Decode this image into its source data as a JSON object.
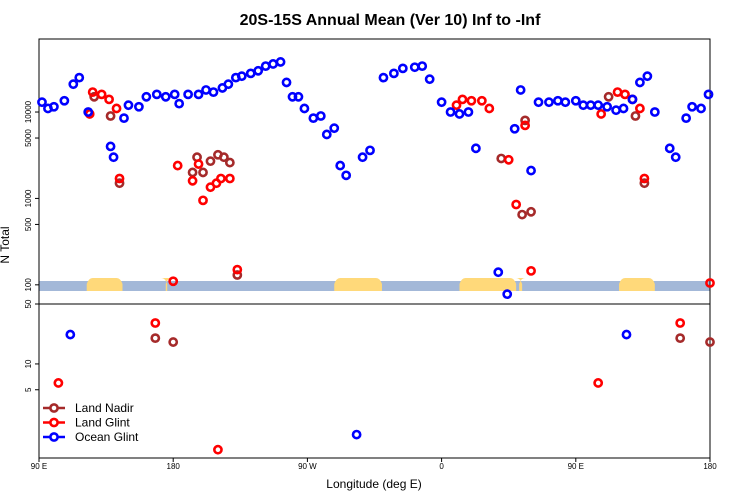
{
  "chart_data": {
    "type": "scatter",
    "title": "20S-15S Annual Mean (Ver 10)   Inf to -Inf",
    "xlabel": "Longitude (deg E)",
    "ylabel": "N Total",
    "x_ticks": [
      {
        "value": 90,
        "label": "90 E"
      },
      {
        "value": 180,
        "label": "180"
      },
      {
        "value": 270,
        "label": "90 W"
      },
      {
        "value": 360,
        "label": "0"
      },
      {
        "value": 450,
        "label": "90 E"
      },
      {
        "value": 540,
        "label": "180"
      }
    ],
    "xlim": [
      90,
      540
    ],
    "upper_panel": {
      "yscale": "log",
      "ylim": [
        60,
        70000
      ],
      "y_ticks": [
        {
          "value": 100,
          "label": "100"
        },
        {
          "value": 500,
          "label": "500"
        },
        {
          "value": 1000,
          "label": "1000"
        },
        {
          "value": 5000,
          "label": "5000"
        },
        {
          "value": 10000,
          "label": "10000"
        }
      ]
    },
    "lower_panel": {
      "yscale": "log",
      "ylim": [
        0.8,
        50
      ],
      "y_ticks": [
        {
          "value": 5,
          "label": "5"
        },
        {
          "value": 10,
          "label": "10"
        },
        {
          "value": 50,
          "label": "50"
        }
      ]
    },
    "land_mask": {
      "description_color_ocean": "#a3b8d8",
      "color_land": "#ffd97a",
      "land_ranges": [
        [
          122,
          146
        ],
        [
          175,
          176
        ],
        [
          288,
          320
        ],
        [
          372,
          410
        ],
        [
          412,
          414
        ],
        [
          479,
          503
        ]
      ]
    },
    "legend": {
      "position": "bottom-left"
    },
    "series": [
      {
        "name": "Land Nadir",
        "color": "#a52a2a",
        "upper": [
          [
            127,
            15000
          ],
          [
            138,
            9000
          ],
          [
            144,
            1500
          ],
          [
            193,
            2000
          ],
          [
            196,
            3000
          ],
          [
            200,
            2000
          ],
          [
            205,
            2700
          ],
          [
            210,
            3200
          ],
          [
            214,
            3000
          ],
          [
            218,
            2600
          ],
          [
            223,
            130
          ],
          [
            400,
            2900
          ],
          [
            414,
            650
          ],
          [
            416,
            8000
          ],
          [
            420,
            700
          ],
          [
            472,
            15000
          ],
          [
            490,
            9000
          ],
          [
            496,
            1500
          ]
        ],
        "lower": [
          [
            168,
            20
          ],
          [
            180,
            18
          ],
          [
            520,
            20
          ],
          [
            540,
            18
          ]
        ]
      },
      {
        "name": "Land Glint",
        "color": "#ff0000",
        "upper": [
          [
            124,
            9500
          ],
          [
            126,
            17000
          ],
          [
            132,
            16000
          ],
          [
            137,
            14000
          ],
          [
            142,
            11000
          ],
          [
            144,
            1700
          ],
          [
            180,
            110
          ],
          [
            183,
            2400
          ],
          [
            193,
            1600
          ],
          [
            197,
            2500
          ],
          [
            200,
            950
          ],
          [
            205,
            1350
          ],
          [
            209,
            1500
          ],
          [
            212,
            1700
          ],
          [
            218,
            1700
          ],
          [
            223,
            150
          ],
          [
            370,
            12000
          ],
          [
            374,
            14000
          ],
          [
            380,
            13500
          ],
          [
            387,
            13500
          ],
          [
            392,
            11000
          ],
          [
            405,
            2800
          ],
          [
            410,
            850
          ],
          [
            416,
            7000
          ],
          [
            420,
            145
          ],
          [
            467,
            9500
          ],
          [
            478,
            17000
          ],
          [
            483,
            16000
          ],
          [
            488,
            14000
          ],
          [
            493,
            11000
          ],
          [
            496,
            1700
          ],
          [
            540,
            105
          ]
        ],
        "lower": [
          [
            103,
            6
          ],
          [
            168,
            30
          ],
          [
            210,
            1
          ],
          [
            465,
            6
          ],
          [
            520,
            30
          ]
        ]
      },
      {
        "name": "Ocean Glint",
        "color": "#0000ff",
        "upper": [
          [
            92,
            13000
          ],
          [
            96,
            11000
          ],
          [
            100,
            11500
          ],
          [
            107,
            13500
          ],
          [
            113,
            21000
          ],
          [
            117,
            25000
          ],
          [
            123,
            10000
          ],
          [
            138,
            4000
          ],
          [
            140,
            3000
          ],
          [
            147,
            8500
          ],
          [
            150,
            12000
          ],
          [
            157,
            11500
          ],
          [
            162,
            15000
          ],
          [
            169,
            16000
          ],
          [
            175,
            15000
          ],
          [
            181,
            16000
          ],
          [
            184,
            12500
          ],
          [
            190,
            16000
          ],
          [
            197,
            16000
          ],
          [
            202,
            18000
          ],
          [
            207,
            17000
          ],
          [
            213,
            19000
          ],
          [
            217,
            21000
          ],
          [
            222,
            25000
          ],
          [
            226,
            26000
          ],
          [
            232,
            28000
          ],
          [
            237,
            30000
          ],
          [
            242,
            34000
          ],
          [
            247,
            36000
          ],
          [
            252,
            38000
          ],
          [
            256,
            22000
          ],
          [
            260,
            15000
          ],
          [
            264,
            15000
          ],
          [
            268,
            11000
          ],
          [
            274,
            8500
          ],
          [
            279,
            9000
          ],
          [
            283,
            5500
          ],
          [
            288,
            6500
          ],
          [
            292,
            2400
          ],
          [
            296,
            1850
          ],
          [
            307,
            3000
          ],
          [
            312,
            3600
          ],
          [
            321,
            25000
          ],
          [
            328,
            28000
          ],
          [
            334,
            32000
          ],
          [
            342,
            33000
          ],
          [
            347,
            34000
          ],
          [
            352,
            24000
          ],
          [
            360,
            13000
          ],
          [
            366,
            10000
          ],
          [
            372,
            9500
          ],
          [
            378,
            10000
          ],
          [
            383,
            3800
          ],
          [
            398,
            140
          ],
          [
            404,
            78
          ],
          [
            409,
            6400
          ],
          [
            413,
            18000
          ],
          [
            420,
            2100
          ],
          [
            425,
            13000
          ],
          [
            432,
            13000
          ],
          [
            438,
            13500
          ],
          [
            443,
            13000
          ],
          [
            450,
            13500
          ],
          [
            455,
            12000
          ],
          [
            460,
            12000
          ],
          [
            465,
            12000
          ],
          [
            471,
            11500
          ],
          [
            477,
            10500
          ],
          [
            482,
            11000
          ],
          [
            488,
            14000
          ],
          [
            493,
            22000
          ],
          [
            498,
            26000
          ],
          [
            503,
            10000
          ],
          [
            513,
            3800
          ],
          [
            517,
            3000
          ],
          [
            524,
            8500
          ],
          [
            528,
            11500
          ],
          [
            534,
            11000
          ],
          [
            539,
            16000
          ]
        ],
        "lower": [
          [
            111,
            22
          ],
          [
            303,
            1.5
          ],
          [
            484,
            22
          ]
        ]
      }
    ]
  }
}
